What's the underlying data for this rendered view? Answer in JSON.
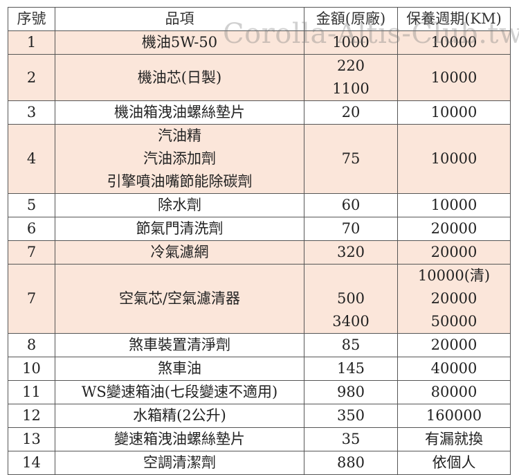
{
  "headers": [
    "序號",
    "品項",
    "金額(原廠)",
    "保養週期(KM)"
  ],
  "watermark": "Corolla-Altis-Club.tw",
  "rows": [
    {
      "no": "1",
      "item": [
        "機油5W-50"
      ],
      "price": [
        "1000"
      ],
      "cycle": [
        "10000"
      ],
      "shade": true
    },
    {
      "no": "2",
      "item": [
        "機油芯(日製)"
      ],
      "price": [
        "220",
        "1100"
      ],
      "cycle": [
        "10000"
      ],
      "shade": true
    },
    {
      "no": "3",
      "item": [
        "機油箱洩油螺絲墊片"
      ],
      "price": [
        "20"
      ],
      "cycle": [
        "10000"
      ],
      "shade": false
    },
    {
      "no": "4",
      "item": [
        "汽油精",
        "汽油添加劑",
        "引擎噴油嘴節能除碳劑"
      ],
      "price": [
        "75"
      ],
      "cycle": [
        "10000"
      ],
      "shade": true
    },
    {
      "no": "5",
      "item": [
        "除水劑"
      ],
      "price": [
        "60"
      ],
      "cycle": [
        "10000"
      ],
      "shade": false
    },
    {
      "no": "6",
      "item": [
        "節氣門清洗劑"
      ],
      "price": [
        "70"
      ],
      "cycle": [
        "20000"
      ],
      "shade": false
    },
    {
      "no": "7",
      "item": [
        "冷氣濾網"
      ],
      "price": [
        "320"
      ],
      "cycle": [
        "20000"
      ],
      "shade": true
    },
    {
      "no": "7",
      "item": [
        "空氣芯/空氣濾清器"
      ],
      "price": [
        "",
        "500",
        "3400"
      ],
      "cycle": [
        "10000(清)",
        "20000",
        "50000"
      ],
      "shade": true
    },
    {
      "no": "8",
      "item": [
        "煞車裝置清淨劑"
      ],
      "price": [
        "85"
      ],
      "cycle": [
        "20000"
      ],
      "shade": false
    },
    {
      "no": "10",
      "item": [
        "煞車油"
      ],
      "price": [
        "145"
      ],
      "cycle": [
        "40000"
      ],
      "shade": false
    },
    {
      "no": "11",
      "item": [
        "WS變速箱油(七段變速不適用)"
      ],
      "price": [
        "980"
      ],
      "cycle": [
        "80000"
      ],
      "shade": false
    },
    {
      "no": "12",
      "item": [
        "水箱精(2公升)"
      ],
      "price": [
        "350"
      ],
      "cycle": [
        "160000"
      ],
      "shade": false
    },
    {
      "no": "13",
      "item": [
        "變速箱洩油螺絲墊片"
      ],
      "price": [
        "35"
      ],
      "cycle": [
        "有漏就換"
      ],
      "shade": false
    },
    {
      "no": "14",
      "item": [
        "空調清潔劑"
      ],
      "price": [
        "880"
      ],
      "cycle": [
        "依個人"
      ],
      "shade": false
    }
  ]
}
